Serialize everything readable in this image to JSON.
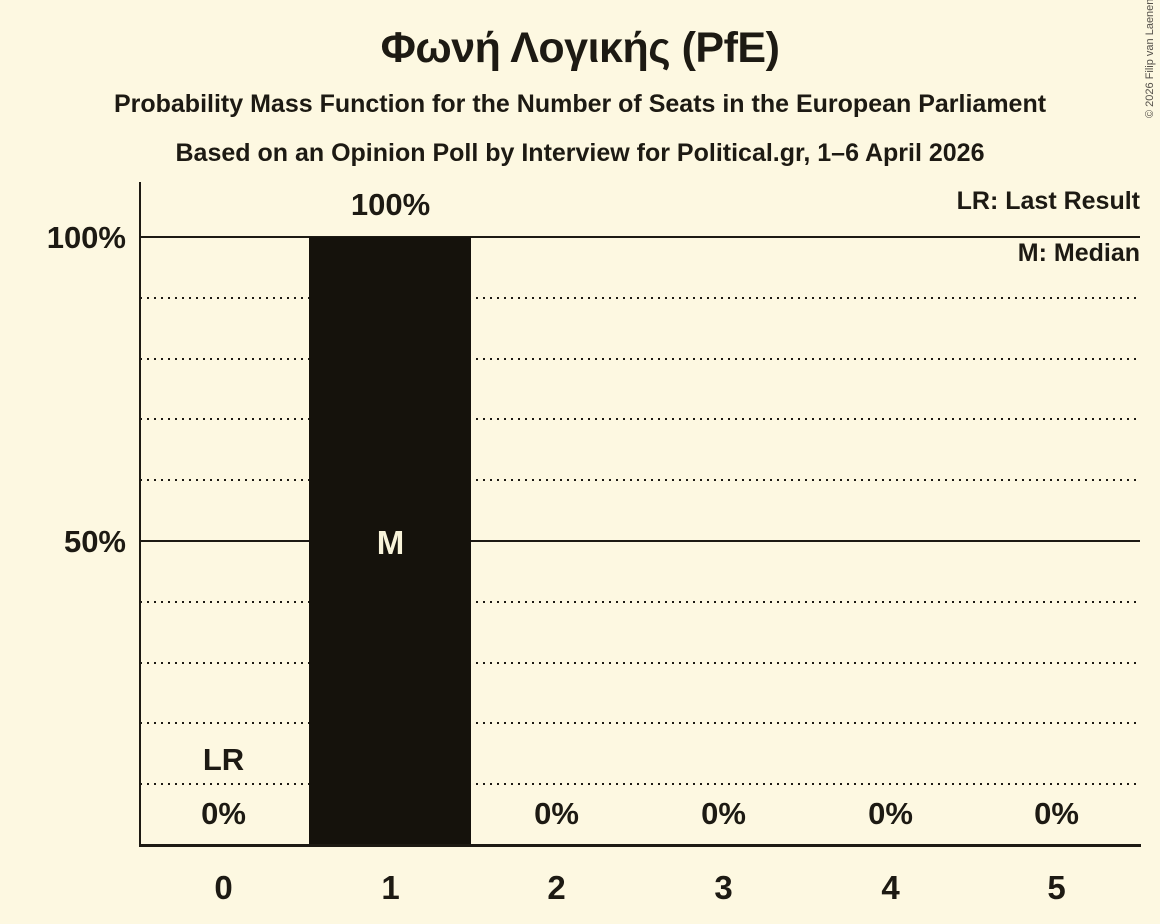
{
  "meta": {
    "copyright": "© 2026 Filip van Laenen"
  },
  "header": {
    "title": "Φωνή Λογικής (PfE)",
    "subtitle1": "Probability Mass Function for the Number of Seats in the European Parliament",
    "subtitle2": "Based on an Opinion Poll by Interview for Political.gr, 1–6 April 2026"
  },
  "legend": {
    "lr": "LR: Last Result",
    "m": "M: Median"
  },
  "chart_data": {
    "type": "bar",
    "title": "Φωνή Λογικής (PfE)",
    "categories": [
      "0",
      "1",
      "2",
      "3",
      "4",
      "5"
    ],
    "values": [
      0,
      100,
      0,
      0,
      0,
      0
    ],
    "value_labels": [
      "0%",
      "100%",
      "0%",
      "0%",
      "0%",
      "0%"
    ],
    "ylim": [
      0,
      100
    ],
    "ytick_labels": [
      "100%",
      "50%"
    ],
    "grid": {
      "dotted_every_pct": 10,
      "solid_at_pct": [
        50,
        100
      ]
    },
    "legend_position": "top-right",
    "annotations": {
      "median_marker": "M",
      "median_column": "1",
      "last_result_marker": "LR",
      "last_result_column": "0"
    },
    "bar_color": "#15120c",
    "background_color": "#fdf8e1",
    "ink_color": "#1d1a13"
  }
}
